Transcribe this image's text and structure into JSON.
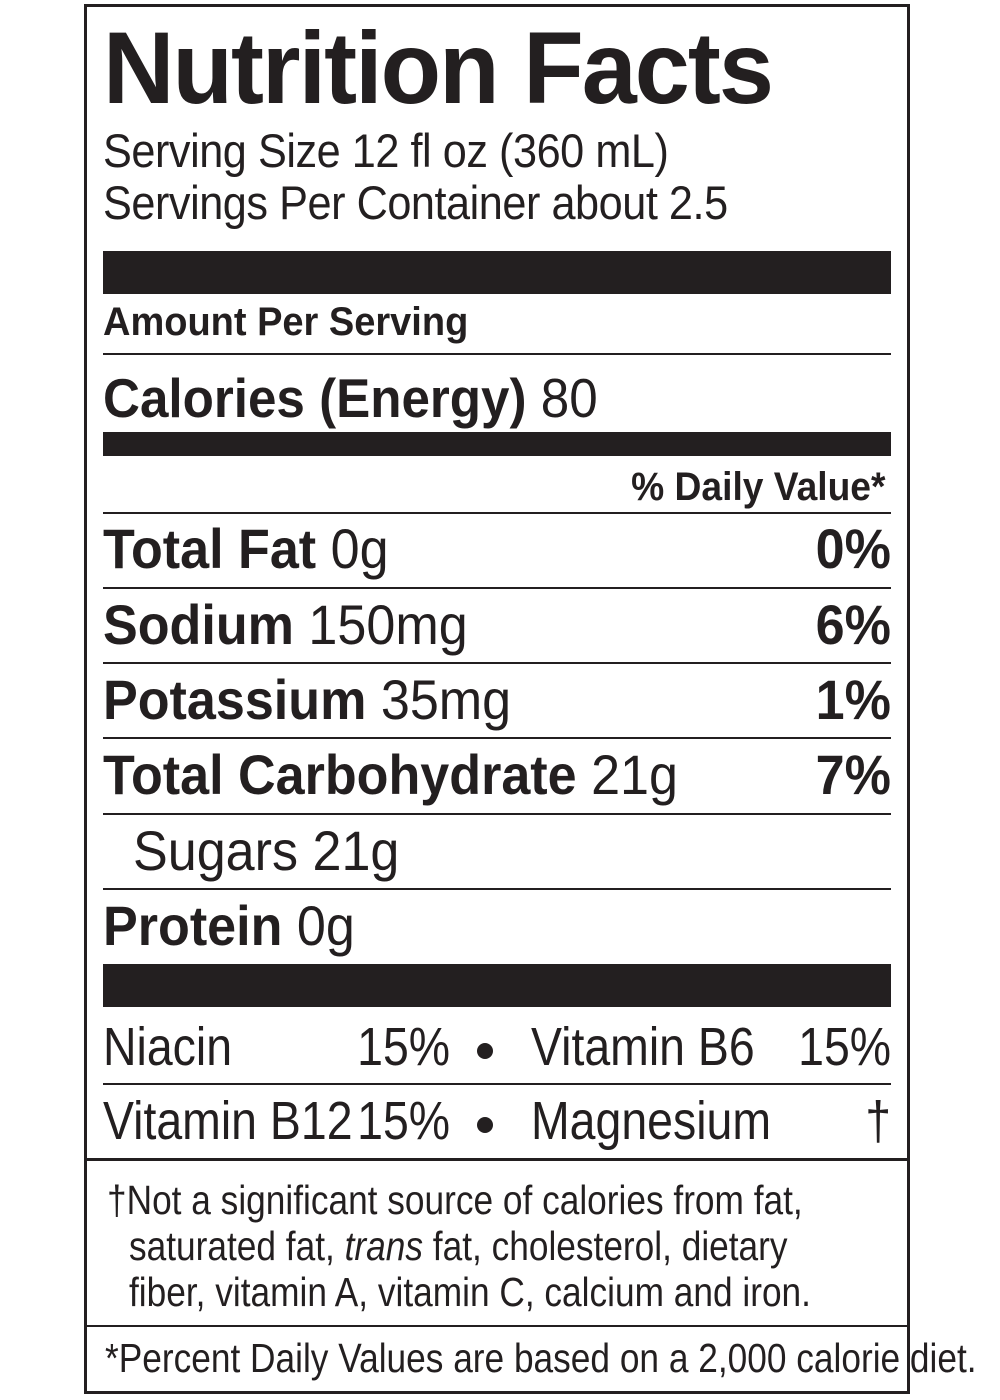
{
  "label": {
    "title": "Nutrition Facts",
    "serving_size": "Serving Size 12 fl oz (360 mL)",
    "servings_per_container": "Servings Per Container about 2.5",
    "amount_per_serving": "Amount Per Serving",
    "calories_label": "Calories (Energy)",
    "calories_value": "80",
    "daily_value_header": "% Daily Value*",
    "nutrients": [
      {
        "name": "Total Fat",
        "amount": "0g",
        "dv": "0%"
      },
      {
        "name": "Sodium",
        "amount": "150mg",
        "dv": "6%"
      },
      {
        "name": "Potassium",
        "amount": "35mg",
        "dv": "1%"
      },
      {
        "name": "Total Carbohydrate",
        "amount": "21g",
        "dv": "7%"
      },
      {
        "name": "Sugars",
        "amount": "21g",
        "dv": ""
      },
      {
        "name": "Protein",
        "amount": "0g",
        "dv": ""
      }
    ],
    "vitamins": [
      {
        "name": "Niacin",
        "dv": "15%"
      },
      {
        "name": "Vitamin B6",
        "dv": "15%"
      },
      {
        "name": "Vitamin B12",
        "dv": "15%"
      },
      {
        "name": "Magnesium",
        "dv": "†"
      }
    ],
    "footnote_1": {
      "line1": "†Not a significant source of calories from fat,",
      "line2_a": "saturated fat, ",
      "line2_italic": "trans",
      "line2_b": " fat, cholesterol, dietary",
      "line3": "fiber, vitamin A, vitamin C, calcium and iron."
    },
    "footnote_2": "*Percent Daily Values are based on a 2,000 calorie diet."
  }
}
